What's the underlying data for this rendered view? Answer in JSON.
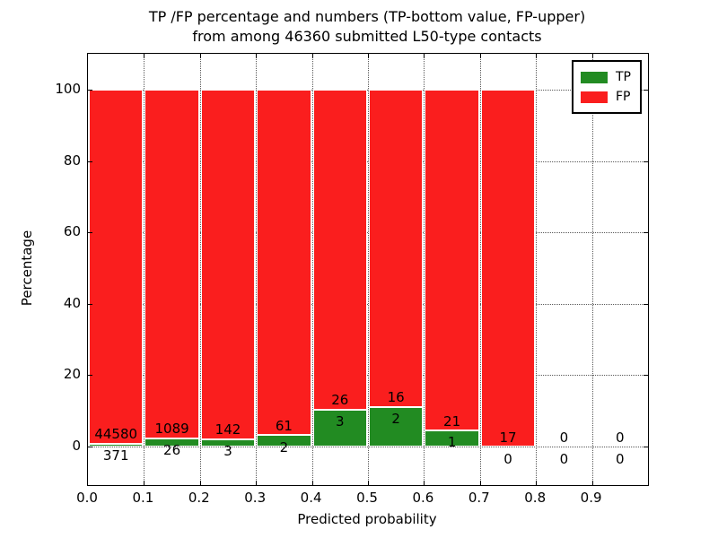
{
  "chart_data": {
    "type": "bar",
    "stacked": true,
    "title_line1": "TP /FP percentage and numbers (TP-bottom value, FP-upper)",
    "title_line2": "from among 46360 submitted L50-type contacts",
    "xlabel": "Predicted probability",
    "ylabel": "Percentage",
    "x_ticks": [
      "0.0",
      "0.1",
      "0.2",
      "0.3",
      "0.4",
      "0.5",
      "0.6",
      "0.7",
      "0.8",
      "0.9"
    ],
    "y_ticks": [
      "0",
      "20",
      "40",
      "60",
      "80",
      "100"
    ],
    "y_tick_values": [
      0,
      20,
      40,
      60,
      80,
      100
    ],
    "xlim": [
      0.0,
      1.0
    ],
    "ylim": [
      -11,
      110
    ],
    "grid": "dotted",
    "legend_position": "upper right",
    "legend": [
      {
        "label": "TP",
        "color": "#228b22"
      },
      {
        "label": "FP",
        "color": "#fa1e1e"
      }
    ],
    "bar_width_x": 0.1,
    "bars": [
      {
        "x0": 0.0,
        "tp_count": 371,
        "fp_count": 44580
      },
      {
        "x0": 0.1,
        "tp_count": 26,
        "fp_count": 1089
      },
      {
        "x0": 0.2,
        "tp_count": 3,
        "fp_count": 142
      },
      {
        "x0": 0.3,
        "tp_count": 2,
        "fp_count": 61
      },
      {
        "x0": 0.4,
        "tp_count": 3,
        "fp_count": 26
      },
      {
        "x0": 0.5,
        "tp_count": 2,
        "fp_count": 16
      },
      {
        "x0": 0.6,
        "tp_count": 1,
        "fp_count": 21
      },
      {
        "x0": 0.7,
        "tp_count": 0,
        "fp_count": 17
      },
      {
        "x0": 0.8,
        "tp_count": 0,
        "fp_count": 0
      },
      {
        "x0": 0.9,
        "tp_count": 0,
        "fp_count": 0
      }
    ],
    "note": "bars show percentage: tp_pct = tp/(tp+fp)*100, fp_pct = 100 - tp_pct; stacked totals reach 100"
  }
}
